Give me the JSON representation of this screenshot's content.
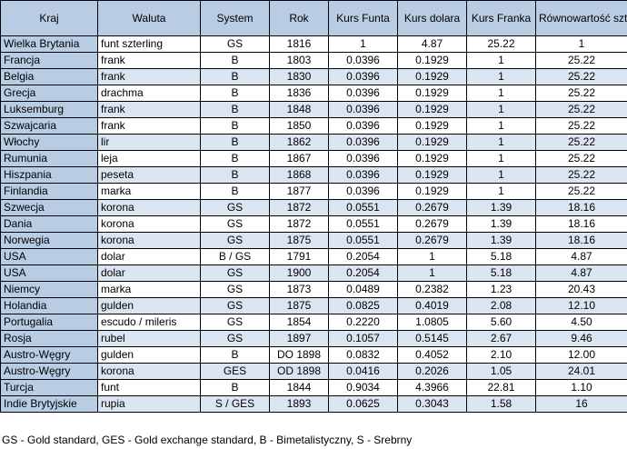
{
  "headers": [
    "Kraj",
    "Waluta",
    "System",
    "Rok",
    "Kurs Funta",
    "Kurs dolara",
    "Kurs Franka",
    "Równowartość szterlinga"
  ],
  "rows": [
    [
      "Wielka Brytania",
      "funt szterling",
      "GS",
      "1816",
      "1",
      "4.87",
      "25.22",
      "1"
    ],
    [
      "Francja",
      "frank",
      "B",
      "1803",
      "0.0396",
      "0.1929",
      "1",
      "25.22"
    ],
    [
      "Belgia",
      "frank",
      "B",
      "1830",
      "0.0396",
      "0.1929",
      "1",
      "25.22"
    ],
    [
      "Grecja",
      "drachma",
      "B",
      "1836",
      "0.0396",
      "0.1929",
      "1",
      "25.22"
    ],
    [
      "Luksemburg",
      "frank",
      "B",
      "1848",
      "0.0396",
      "0.1929",
      "1",
      "25.22"
    ],
    [
      "Szwajcaria",
      "frank",
      "B",
      "1850",
      "0.0396",
      "0.1929",
      "1",
      "25.22"
    ],
    [
      "Włochy",
      "lir",
      "B",
      "1862",
      "0.0396",
      "0.1929",
      "1",
      "25.22"
    ],
    [
      "Rumunia",
      "leja",
      "B",
      "1867",
      "0.0396",
      "0.1929",
      "1",
      "25.22"
    ],
    [
      "Hiszpania",
      "peseta",
      "B",
      "1868",
      "0.0396",
      "0.1929",
      "1",
      "25.22"
    ],
    [
      "Finlandia",
      "marka",
      "B",
      "1877",
      "0.0396",
      "0.1929",
      "1",
      "25.22"
    ],
    [
      "Szwecja",
      "korona",
      "GS",
      "1872",
      "0.0551",
      "0.2679",
      "1.39",
      "18.16"
    ],
    [
      "Dania",
      "korona",
      "GS",
      "1872",
      "0.0551",
      "0.2679",
      "1.39",
      "18.16"
    ],
    [
      "Norwegia",
      "korona",
      "GS",
      "1875",
      "0.0551",
      "0.2679",
      "1.39",
      "18.16"
    ],
    [
      "USA",
      "dolar",
      "B / GS",
      "1791",
      "0.2054",
      "1",
      "5.18",
      "4.87"
    ],
    [
      "USA",
      "dolar",
      "GS",
      "1900",
      "0.2054",
      "1",
      "5.18",
      "4.87"
    ],
    [
      "Niemcy",
      "marka",
      "GS",
      "1873",
      "0.0489",
      "0.2382",
      "1.23",
      "20.43"
    ],
    [
      "Holandia",
      "gulden",
      "GS",
      "1875",
      "0.0825",
      "0.4019",
      "2.08",
      "12.10"
    ],
    [
      "Portugalia",
      "escudo / mileris",
      "GS",
      "1854",
      "0.2220",
      "1.0805",
      "5.60",
      "4.50"
    ],
    [
      "Rosja",
      "rubel",
      "GS",
      "1897",
      "0.1057",
      "0.5145",
      "2.67",
      "9.46"
    ],
    [
      "Austro-Węgry",
      "gulden",
      "B",
      "DO 1898",
      "0.0832",
      "0.4052",
      "2.10",
      "12.00"
    ],
    [
      "Austro-Węgry",
      "korona",
      "GES",
      "OD 1898",
      "0.0416",
      "0.2026",
      "1.05",
      "24.01"
    ],
    [
      "Turcja",
      "funt",
      "B",
      "1844",
      "0.9034",
      "4.3966",
      "22.81",
      "1.10"
    ],
    [
      "Indie Brytyjskie",
      "rupia",
      "S / GES",
      "1893",
      "0.0625",
      "0.3043",
      "1.58",
      "16"
    ]
  ],
  "legend": "GS - Gold standard, GES - Gold exchange standard, B - Bimetalistyczny, S - Srebrny",
  "colors": {
    "header_bg": "#b8cce4",
    "row_alt_bg": "#dbe5f1",
    "border": "#000000"
  }
}
